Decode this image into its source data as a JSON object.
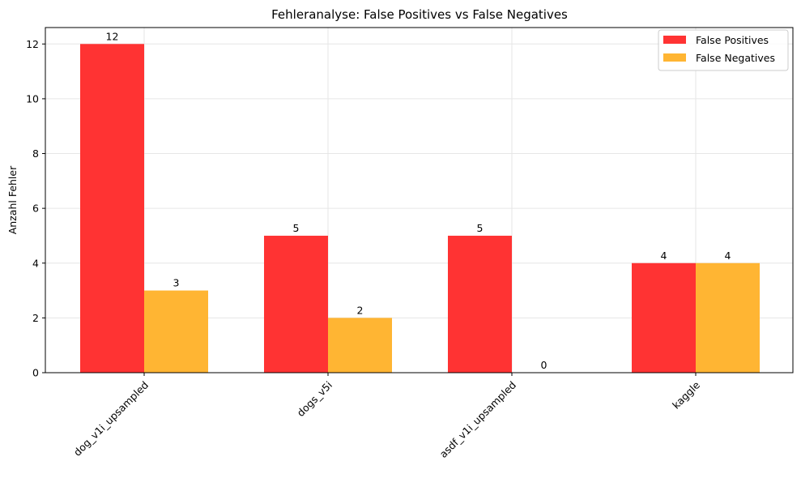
{
  "chart_data": {
    "type": "bar",
    "title": "Fehleranalyse: False Positives vs False Negatives",
    "xlabel": "",
    "ylabel": "Anzahl Fehler",
    "categories": [
      "dog_v1i_upsampled",
      "dogs_v5i",
      "asdf_v1i_upsampled",
      "kaggle"
    ],
    "series": [
      {
        "name": "False Positives",
        "values": [
          12,
          5,
          5,
          4
        ],
        "color": "#ff3333"
      },
      {
        "name": "False Negatives",
        "values": [
          3,
          2,
          0,
          4
        ],
        "color": "#ffb533"
      }
    ],
    "ylim": [
      0,
      12.6
    ],
    "yticks": [
      0,
      2,
      4,
      6,
      8,
      10,
      12
    ],
    "grid": true,
    "legend_position": "top-right",
    "tick_label_rotation": 45
  }
}
